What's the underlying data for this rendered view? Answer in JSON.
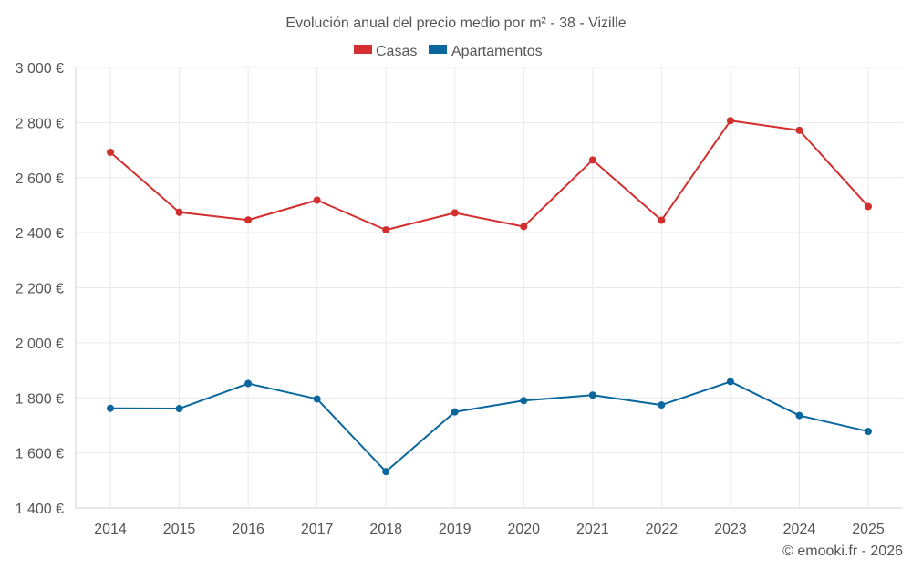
{
  "chart_data": {
    "type": "line",
    "title": "Evolución anual del precio medio por m² - 38 - Vizille",
    "categories": [
      "2014",
      "2015",
      "2016",
      "2017",
      "2018",
      "2019",
      "2020",
      "2021",
      "2022",
      "2023",
      "2024",
      "2025"
    ],
    "series": [
      {
        "name": "Casas",
        "color": "#d32f2f",
        "values": [
          2692,
          2474,
          2446,
          2518,
          2410,
          2472,
          2422,
          2664,
          2445,
          2807,
          2772,
          2495
        ]
      },
      {
        "name": "Apartamentos",
        "color": "#0a679e",
        "values": [
          1762,
          1761,
          1852,
          1796,
          1532,
          1749,
          1790,
          1810,
          1774,
          1859,
          1736,
          1678
        ]
      }
    ],
    "ylim": [
      1400,
      3000
    ],
    "yticks": [
      1400,
      1600,
      1800,
      2000,
      2200,
      2400,
      2600,
      2800,
      3000
    ],
    "ytick_labels": [
      "1 400 €",
      "1 600 €",
      "1 800 €",
      "2 000 €",
      "2 200 €",
      "2 400 €",
      "2 600 €",
      "2 800 €",
      "3 000 €"
    ],
    "legend_position": "top-center",
    "grid": true
  },
  "credit": "© emooki.fr - 2026"
}
